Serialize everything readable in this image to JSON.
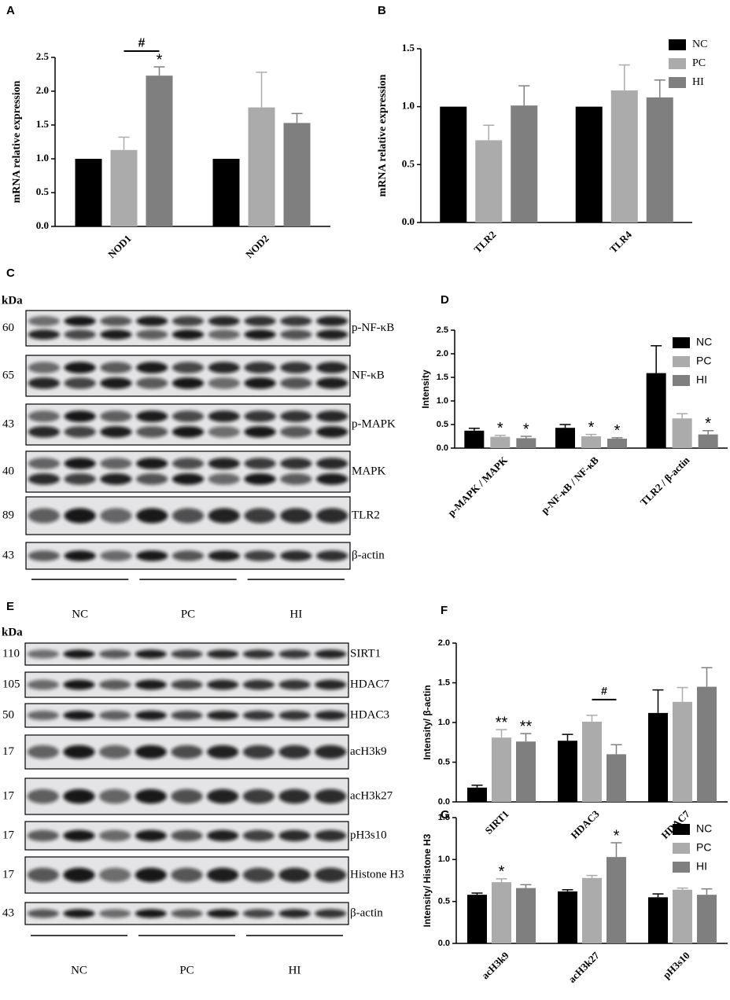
{
  "panel_labels": [
    "A",
    "B",
    "C",
    "D",
    "E",
    "F",
    "G"
  ],
  "chart_data": [
    {
      "type": "bar",
      "ylabel": "mRNA relative expression",
      "categories": [
        "NOD1",
        "NOD2"
      ],
      "series": [
        {
          "color": "#000000",
          "values": [
            1,
            1
          ]
        },
        {
          "color": "#ababab",
          "values": [
            1.13,
            1.76
          ],
          "errors": [
            0.19,
            0.52
          ]
        },
        {
          "color": "#7f7f7f",
          "values": [
            2.23,
            1.53
          ],
          "errors": [
            0.13,
            0.14
          ]
        }
      ],
      "ylim": [
        0,
        2.5
      ],
      "yticks": [
        {
          "value": 0,
          "label": "0.0"
        },
        {
          "value": 0.5,
          "label": "0.5"
        },
        {
          "value": 1,
          "label": "1.0"
        },
        {
          "value": 1.5,
          "label": "1.5"
        },
        {
          "value": 2,
          "label": "2.0"
        },
        {
          "value": 2.5,
          "label": "2.5"
        }
      ],
      "annotations": [
        {
          "text": "*",
          "series": 2,
          "category": 0
        }
      ],
      "brackets": [
        {
          "text": "#",
          "from_series": 1,
          "to_series": 2,
          "category": 0
        }
      ]
    },
    {
      "type": "bar",
      "ylabel": "mRNA relative expression",
      "categories": [
        "TLR2",
        "TLR4"
      ],
      "series": [
        {
          "name": "NC",
          "color": "#000000",
          "values": [
            1,
            1
          ]
        },
        {
          "name": "PC",
          "color": "#ababab",
          "values": [
            0.71,
            1.14
          ],
          "errors": [
            0.13,
            0.22
          ]
        },
        {
          "name": "HI",
          "color": "#7f7f7f",
          "values": [
            1.01,
            1.08
          ],
          "errors": [
            0.17,
            0.15
          ]
        }
      ],
      "ylim": [
        0,
        1.5
      ],
      "yticks": [
        {
          "value": 0,
          "label": "0.0"
        },
        {
          "value": 0.5,
          "label": "0.5"
        },
        {
          "value": 1,
          "label": "1.0"
        },
        {
          "value": 1.5,
          "label": "1.5"
        }
      ],
      "legend": "upper right"
    },
    {
      "type": "bar",
      "ylabel": "Intensity",
      "categories": [
        "p-MAPK / MAPK",
        "p-NF-κB / NF-κB",
        "TLR2 / β-actin"
      ],
      "series": [
        {
          "name": "NC",
          "color": "#000000",
          "values": [
            0.37,
            0.43,
            1.59
          ],
          "errors": [
            0.05,
            0.07,
            0.58
          ]
        },
        {
          "name": "PC",
          "color": "#ababab",
          "values": [
            0.24,
            0.25,
            0.63
          ],
          "errors": [
            0.03,
            0.04,
            0.1
          ]
        },
        {
          "name": "HI",
          "color": "#7f7f7f",
          "values": [
            0.21,
            0.2,
            0.29
          ],
          "errors": [
            0.04,
            0.02,
            0.08
          ]
        }
      ],
      "ylim": [
        0,
        2.5
      ],
      "yticks": [
        {
          "value": 0,
          "label": "0.0"
        },
        {
          "value": 0.5,
          "label": "0.5"
        },
        {
          "value": 1,
          "label": "1.0"
        },
        {
          "value": 1.5,
          "label": "1.5"
        },
        {
          "value": 2,
          "label": "2.0"
        },
        {
          "value": 2.5,
          "label": "2.5"
        }
      ],
      "legend": "upper right",
      "annotations": [
        {
          "text": "*",
          "series": 1,
          "category": 0
        },
        {
          "text": "*",
          "series": 2,
          "category": 0
        },
        {
          "text": "*",
          "series": 1,
          "category": 1
        },
        {
          "text": "*",
          "series": 2,
          "category": 1
        },
        {
          "text": "*",
          "series": 2,
          "category": 2
        }
      ]
    },
    {
      "type": "bar",
      "ylabel": "Intensity/ β-actin",
      "categories": [
        "SIRT1",
        "HDAC3",
        "HDAC7"
      ],
      "series": [
        {
          "color": "#000000",
          "values": [
            0.18,
            0.77,
            1.12
          ],
          "errors": [
            0.03,
            0.08,
            0.29
          ]
        },
        {
          "color": "#ababab",
          "values": [
            0.81,
            1.01,
            1.26
          ],
          "errors": [
            0.1,
            0.08,
            0.18
          ]
        },
        {
          "color": "#7f7f7f",
          "values": [
            0.76,
            0.6,
            1.45
          ],
          "errors": [
            0.1,
            0.12,
            0.24
          ]
        }
      ],
      "ylim": [
        0,
        2
      ],
      "yticks": [
        {
          "value": 0,
          "label": "0.0"
        },
        {
          "value": 0.5,
          "label": "0.5"
        },
        {
          "value": 1,
          "label": "1.0"
        },
        {
          "value": 1.5,
          "label": "1.5"
        },
        {
          "value": 2,
          "label": "2.0"
        }
      ],
      "annotations": [
        {
          "text": "**",
          "series": 1,
          "category": 0
        },
        {
          "text": "**",
          "series": 2,
          "category": 0
        }
      ],
      "brackets": [
        {
          "text": "#",
          "from_series": 1,
          "to_series": 2,
          "category": 1
        }
      ]
    },
    {
      "type": "bar",
      "ylabel": "Intensity/ Histone H3",
      "categories": [
        "acH3k9",
        "acH3k27",
        "pH3s10"
      ],
      "series": [
        {
          "name": "NC",
          "color": "#000000",
          "values": [
            0.58,
            0.62,
            0.55
          ],
          "errors": [
            0.02,
            0.02,
            0.04
          ]
        },
        {
          "name": "PC",
          "color": "#ababab",
          "values": [
            0.73,
            0.78,
            0.64
          ],
          "errors": [
            0.04,
            0.03,
            0.02
          ]
        },
        {
          "name": "HI",
          "color": "#7f7f7f",
          "values": [
            0.66,
            1.03,
            0.58
          ],
          "errors": [
            0.04,
            0.17,
            0.07
          ]
        }
      ],
      "ylim": [
        0,
        1.5
      ],
      "yticks": [
        {
          "value": 0,
          "label": "0.0"
        },
        {
          "value": 0.5,
          "label": "0.5"
        },
        {
          "value": 1,
          "label": "1.0"
        },
        {
          "value": 1.5,
          "label": "1.5"
        }
      ],
      "legend": "upper right",
      "annotations": [
        {
          "text": "*",
          "series": 1,
          "category": 0
        },
        {
          "text": "*",
          "series": 2,
          "category": 1
        }
      ]
    }
  ],
  "blots": [
    {
      "unit": "kDa",
      "groups": [
        "NC",
        "PC",
        "HI"
      ],
      "rows": [
        {
          "kda": "60",
          "label": "p-NF-κB"
        },
        {
          "kda": "65",
          "label": "NF-κB"
        },
        {
          "kda": "43",
          "label": "p-MAPK"
        },
        {
          "kda": "40",
          "label": "MAPK"
        },
        {
          "kda": "89",
          "label": "TLR2"
        },
        {
          "kda": "43",
          "label": "β-actin"
        }
      ]
    },
    {
      "unit": "kDa",
      "groups": [
        "NC",
        "PC",
        "HI"
      ],
      "rows": [
        {
          "kda": "110",
          "label": "SIRT1"
        },
        {
          "kda": "105",
          "label": "HDAC7"
        },
        {
          "kda": "50",
          "label": "HDAC3"
        },
        {
          "kda": "17",
          "label": "acH3k9"
        },
        {
          "kda": "17",
          "label": "acH3k27"
        },
        {
          "kda": "17",
          "label": "pH3s10"
        },
        {
          "kda": "17",
          "label": "Histone H3"
        },
        {
          "kda": "43",
          "label": "β-actin"
        }
      ]
    }
  ]
}
